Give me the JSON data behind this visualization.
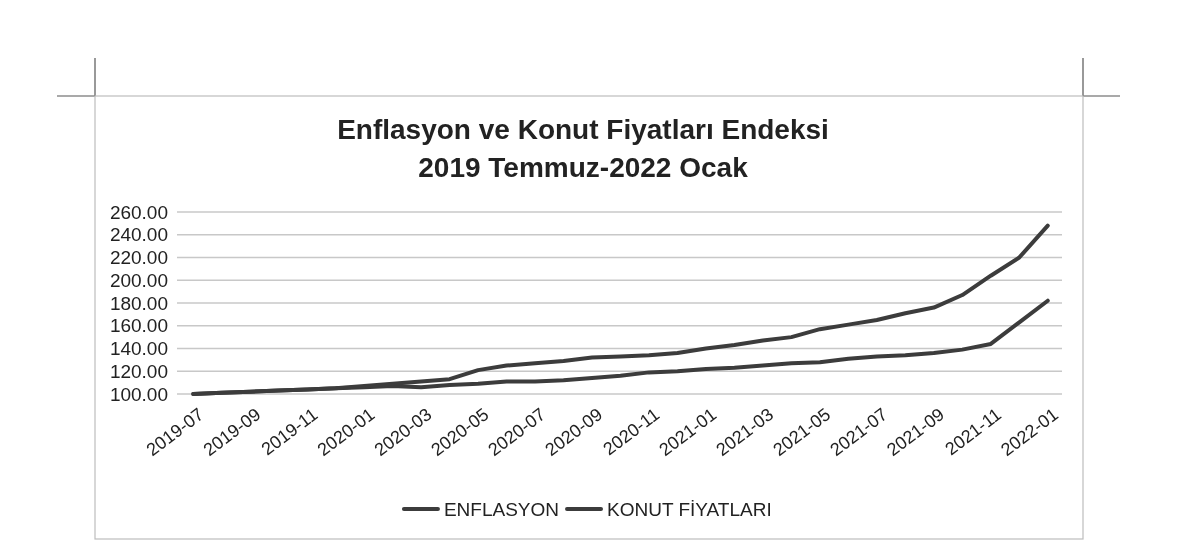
{
  "chart_data": {
    "type": "line",
    "title": "Enflasyon ve Konut Fiyatları Endeksi",
    "subtitle": "2019 Temmuz-2022 Ocak",
    "categories": [
      "2019-07",
      null,
      "2019-09",
      null,
      "2019-11",
      null,
      "2020-01",
      null,
      "2020-03",
      null,
      "2020-05",
      null,
      "2020-07",
      null,
      "2020-09",
      null,
      "2020-11",
      null,
      "2021-01",
      null,
      "2021-03",
      null,
      "2021-05",
      null,
      "2021-07",
      null,
      "2021-09",
      null,
      "2021-11",
      null,
      "2022-01"
    ],
    "series": [
      {
        "name": "ENFLASYON",
        "color": "#3c3c3c",
        "values": [
          100,
          101,
          102,
          103,
          104,
          105,
          106,
          107,
          106,
          108,
          109,
          111,
          111,
          112,
          114,
          116,
          119,
          120,
          122,
          123,
          125,
          127,
          128,
          131,
          133,
          134,
          136,
          139,
          144,
          163,
          182
        ]
      },
      {
        "name": "KONUT FİYATLARI",
        "color": "#3c3c3c",
        "values": [
          100,
          101,
          102,
          103,
          104,
          105,
          107,
          109,
          111,
          113,
          121,
          125,
          127,
          129,
          132,
          133,
          134,
          136,
          140,
          143,
          147,
          150,
          157,
          161,
          165,
          171,
          176,
          187,
          204,
          220,
          248
        ]
      }
    ],
    "ylim": [
      100,
      260
    ],
    "yticks": [
      {
        "value": 100,
        "label": "100.00"
      },
      {
        "value": 120,
        "label": "120.00"
      },
      {
        "value": 140,
        "label": "140.00"
      },
      {
        "value": 160,
        "label": "160.00"
      },
      {
        "value": 180,
        "label": "180.00"
      },
      {
        "value": 200,
        "label": "200.00"
      },
      {
        "value": 220,
        "label": "220.00"
      },
      {
        "value": 240,
        "label": "240.00"
      },
      {
        "value": 260,
        "label": "260.00"
      }
    ],
    "grid": "y",
    "legend": "bottom",
    "line_style": "solid"
  }
}
